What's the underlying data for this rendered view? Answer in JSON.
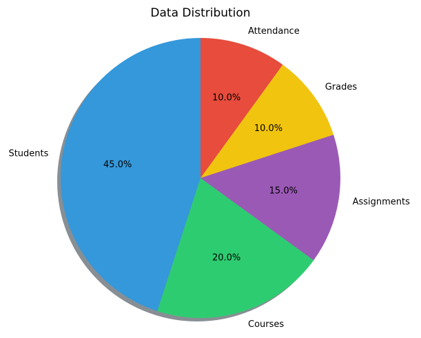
{
  "chart_data": {
    "type": "pie",
    "title": "Data Distribution",
    "categories": [
      "Students",
      "Courses",
      "Assignments",
      "Grades",
      "Attendance"
    ],
    "values": [
      45.0,
      20.0,
      15.0,
      10.0,
      10.0
    ],
    "percent_labels": [
      "45.0%",
      "20.0%",
      "15.0%",
      "10.0%",
      "10.0%"
    ],
    "colors": [
      "#3498db",
      "#2ecc71",
      "#9b59b6",
      "#f1c40f",
      "#e74c3c"
    ],
    "shadow": true,
    "direction": "counterclockwise",
    "start_angle_deg": 90,
    "legend": "none"
  }
}
